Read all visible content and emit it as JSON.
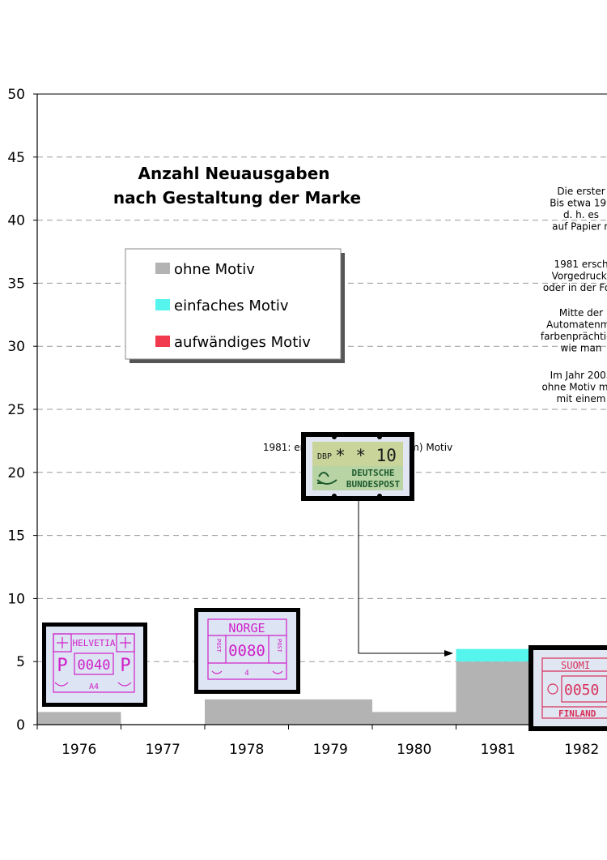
{
  "chart_data": {
    "type": "bar",
    "title": [
      "Anzahl Neuausgaben",
      "nach Gestaltung der Marke"
    ],
    "categories": [
      "1976",
      "1977",
      "1978",
      "1979",
      "1980",
      "1981",
      "1982"
    ],
    "ylim": [
      0,
      50
    ],
    "yticks": [
      0,
      5,
      10,
      15,
      20,
      25,
      30,
      35,
      40,
      45,
      50
    ],
    "grid": true,
    "legend_position": "top-left",
    "stacked": true,
    "series": [
      {
        "name": "ohne Motiv",
        "color": "#b3b3b3",
        "values": [
          1,
          0,
          2,
          2,
          1,
          5,
          5
        ]
      },
      {
        "name": "einfaches Motiv",
        "color": "#55f5ee",
        "values": [
          0,
          0,
          0,
          0,
          0,
          1,
          0
        ]
      },
      {
        "name": "aufwändiges Motiv",
        "color": "#f23a4e",
        "values": [
          0,
          0,
          0,
          0,
          0,
          0,
          0
        ]
      }
    ],
    "annotation": "1981: erste ATM mit (einfachem) Motiv"
  },
  "side_text": [
    [
      "Die erster",
      "Bis etwa 199",
      "d. h. es",
      "auf Papier n"
    ],
    [
      "1981 ersch",
      "Vorgedruckt",
      "oder in der Folg"
    ],
    [
      "Mitte der",
      "Automatenma",
      "farbenprächtig u",
      "wie man"
    ],
    [
      "Im Jahr 2003",
      "ohne Motiv meh",
      "mit einem"
    ]
  ],
  "stamps": {
    "helvetia": {
      "country": "HELVETIA",
      "value": "0040",
      "code": "A4",
      "letter": "P"
    },
    "norge": {
      "country": "NORGE",
      "value": "0080",
      "code": "4",
      "side": "POST"
    },
    "dbp": {
      "prefix": "DBP",
      "value": "* * 10",
      "line1": "DEUTSCHE",
      "line2": "BUNDESPOST"
    },
    "suomi": {
      "top": "SUOMI",
      "value": "0050",
      "bottom": "FINLAND"
    }
  }
}
